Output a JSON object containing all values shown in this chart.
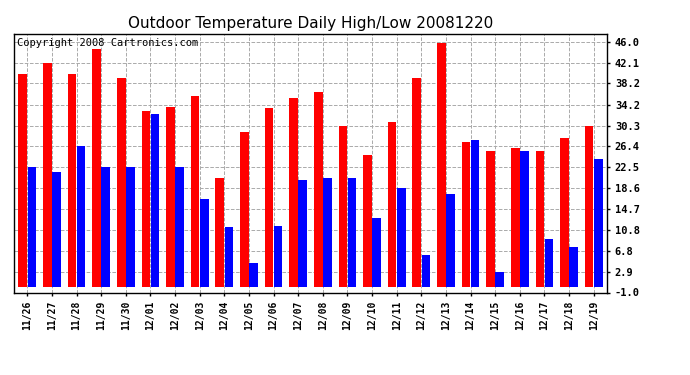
{
  "title": "Outdoor Temperature Daily High/Low 20081220",
  "copyright": "Copyright 2008 Cartronics.com",
  "labels": [
    "11/26",
    "11/27",
    "11/28",
    "11/29",
    "11/30",
    "12/01",
    "12/02",
    "12/03",
    "12/04",
    "12/05",
    "12/06",
    "12/07",
    "12/08",
    "12/09",
    "12/10",
    "12/11",
    "12/12",
    "12/13",
    "12/14",
    "12/15",
    "12/16",
    "12/17",
    "12/18",
    "12/19"
  ],
  "highs": [
    40.0,
    42.1,
    40.0,
    44.6,
    39.2,
    33.0,
    33.8,
    35.8,
    20.5,
    29.0,
    33.5,
    35.5,
    36.5,
    30.3,
    24.8,
    31.0,
    39.2,
    45.8,
    27.3,
    25.5,
    26.0,
    25.5,
    28.0,
    30.3
  ],
  "lows": [
    22.5,
    21.5,
    26.5,
    22.5,
    22.5,
    32.5,
    22.5,
    16.5,
    11.2,
    4.5,
    11.5,
    20.0,
    20.5,
    20.5,
    13.0,
    18.6,
    6.0,
    17.5,
    27.5,
    2.9,
    25.5,
    9.0,
    7.5,
    24.0
  ],
  "bar_color_high": "#FF0000",
  "bar_color_low": "#0000FF",
  "bg_color": "#FFFFFF",
  "grid_color": "#AAAAAA",
  "yticks": [
    46.0,
    42.1,
    38.2,
    34.2,
    30.3,
    26.4,
    22.5,
    18.6,
    14.7,
    10.8,
    6.8,
    2.9,
    -1.0
  ],
  "ymin": -1.0,
  "ymax": 47.5,
  "title_fontsize": 11,
  "copyright_fontsize": 7.5,
  "bar_width": 0.35,
  "figwidth": 6.9,
  "figheight": 3.75,
  "dpi": 100
}
